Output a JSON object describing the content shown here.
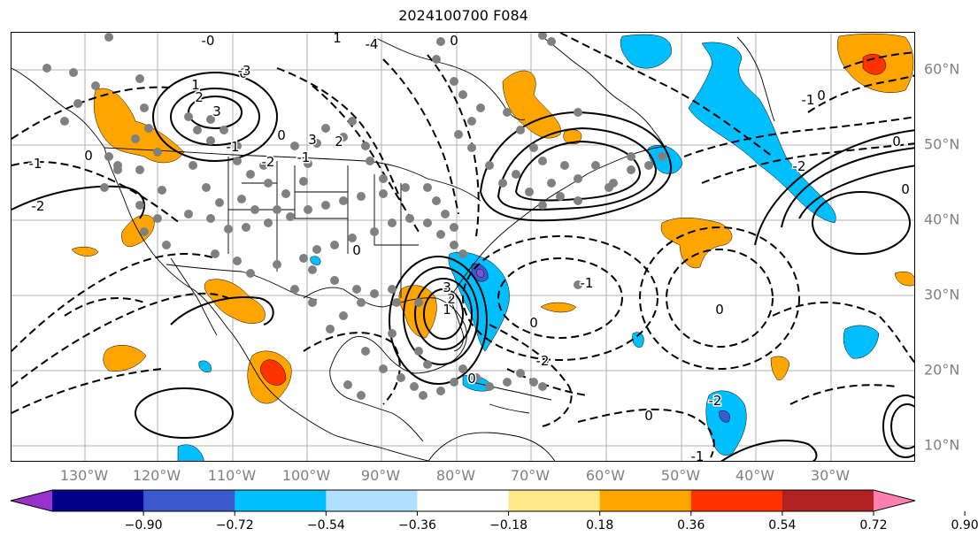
{
  "title": "2024100700 F084",
  "lon_labels": [
    "130°W",
    "120°W",
    "110°W",
    "100°W",
    "90°W",
    "80°W",
    "70°W",
    "60°W",
    "50°W",
    "40°W",
    "30°W"
  ],
  "lat_labels": [
    "60°N",
    "50°N",
    "40°N",
    "30°N",
    "20°N",
    "10°N"
  ],
  "colorbar": {
    "ticks": [
      "−0.90",
      "−0.72",
      "−0.54",
      "−0.36",
      "−0.18",
      "0.18",
      "0.36",
      "0.54",
      "0.72",
      "0.90"
    ],
    "colors": [
      "#9932cc",
      "#00008b",
      "#3a5acd",
      "#00bfff",
      "#b0e0ff",
      "#ffffff",
      "#ffe88a",
      "#ffa500",
      "#ff3300",
      "#b22222",
      "#ff80b0"
    ]
  },
  "contour_labels": [
    "-0",
    "0",
    "1",
    "2",
    "3",
    "-1",
    "-2",
    "0",
    "-3",
    "-4",
    "0",
    "1",
    "2",
    "3",
    "0",
    "-1",
    "-2",
    "-1",
    "0",
    "3",
    "2",
    "1",
    "0",
    "-2",
    "-1",
    "0",
    "-1",
    "0",
    "-2",
    "0",
    "-1",
    "0",
    "-2",
    "0",
    "0"
  ],
  "colors": {
    "orange": "#ffa500",
    "red": "#ff3300",
    "darkred": "#d73000",
    "cyan": "#00bfff",
    "blue": "#3a5acd",
    "purple": "#7b55d0",
    "station": "#808080",
    "grid": "#b0b0b0",
    "axis_label": "#808080"
  }
}
